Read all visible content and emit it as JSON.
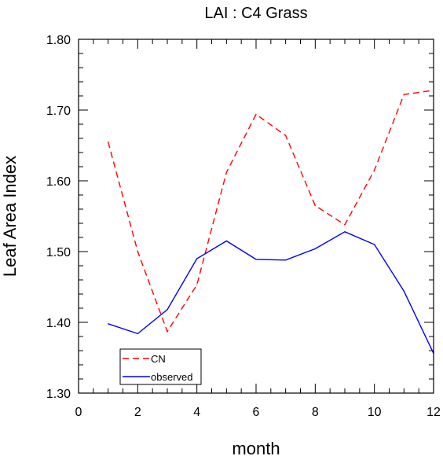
{
  "chart_data": {
    "type": "line",
    "title": "LAI : C4 Grass",
    "xlabel": "month",
    "ylabel": "Leaf Area Index",
    "xlim": [
      0,
      12
    ],
    "ylim": [
      1.3,
      1.8
    ],
    "x_ticks": [
      0,
      2,
      4,
      6,
      8,
      10,
      12
    ],
    "x_tick_labels": [
      "0",
      "2",
      "4",
      "6",
      "8",
      "10",
      "12"
    ],
    "y_ticks": [
      1.3,
      1.4,
      1.5,
      1.6,
      1.7,
      1.8
    ],
    "y_tick_labels": [
      "1.30",
      "1.40",
      "1.50",
      "1.60",
      "1.70",
      "1.80"
    ],
    "grid": false,
    "legend_position": "bottom-left",
    "x": [
      1,
      2,
      3,
      4,
      5,
      6,
      7,
      8,
      9,
      10,
      11,
      12
    ],
    "series": [
      {
        "name": "CN",
        "color": "#ff0000",
        "dash": "dashed",
        "values": [
          1.655,
          1.5,
          1.387,
          1.453,
          1.612,
          1.694,
          1.664,
          1.565,
          1.538,
          1.615,
          1.722,
          1.728
        ]
      },
      {
        "name": "observed",
        "color": "#0000ff",
        "dash": "solid",
        "values": [
          1.398,
          1.384,
          1.418,
          1.49,
          1.515,
          1.489,
          1.488,
          1.504,
          1.528,
          1.51,
          1.444,
          1.356
        ]
      }
    ]
  }
}
